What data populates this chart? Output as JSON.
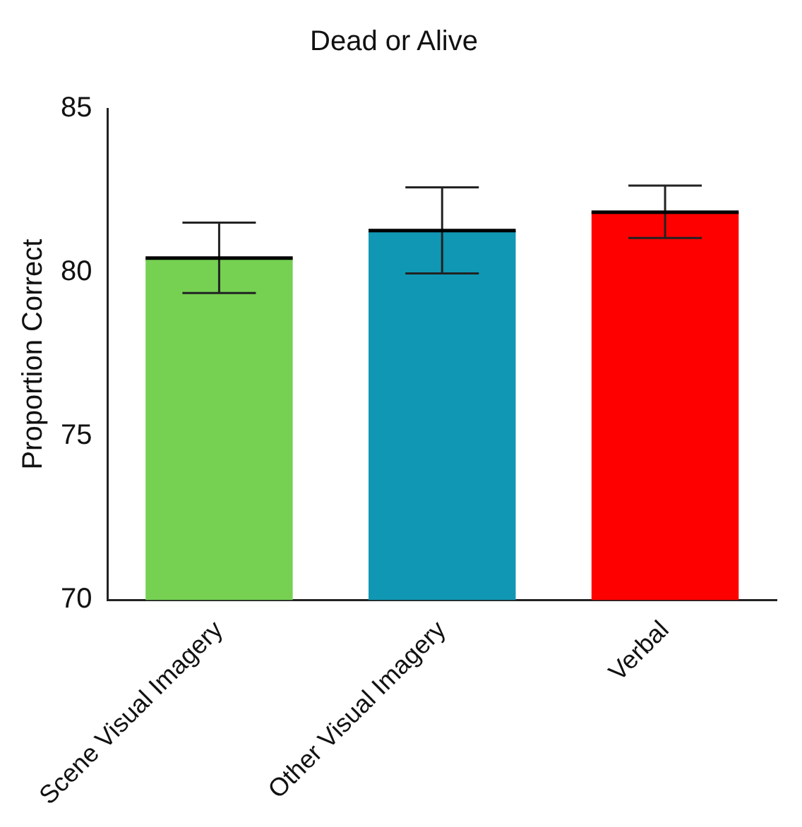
{
  "chart_data": {
    "type": "bar",
    "title": "Dead or Alive",
    "ylabel": "Proportion Correct",
    "categories": [
      "Scene Visual Imagery",
      "Other Visual Imagery",
      "Verbal"
    ],
    "values": [
      80.44,
      81.28,
      81.84
    ],
    "colors": [
      "#76d152",
      "#1097b3",
      "#ff0000"
    ],
    "errors": [
      [
        79.37,
        81.52
      ],
      [
        79.97,
        82.6
      ],
      [
        81.05,
        82.65
      ]
    ],
    "ylim": [
      70,
      85
    ],
    "yticks": [
      70,
      75,
      80,
      85
    ],
    "grid": false,
    "legend": false
  }
}
